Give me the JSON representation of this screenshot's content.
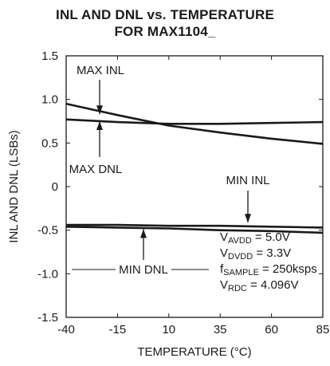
{
  "chart_data": {
    "type": "line",
    "title": "INL AND DNL vs. TEMPERATURE",
    "subtitle": "FOR MAX1104_",
    "xlabel": "TEMPERATURE (°C)",
    "ylabel": "INL AND DNL (LSBs)",
    "xlim": [
      -40,
      85
    ],
    "ylim": [
      -1.5,
      1.5
    ],
    "x_ticks": [
      "-40",
      "-15",
      "10",
      "35",
      "60",
      "85"
    ],
    "y_ticks": [
      "1.5",
      "1.0",
      "0.5",
      "0",
      "-0.5",
      "-1.0",
      "-1.5"
    ],
    "grid": false,
    "series": [
      {
        "name": "MAX INL",
        "x": [
          -40,
          -15,
          10,
          35,
          60,
          85
        ],
        "y": [
          0.95,
          0.82,
          0.7,
          0.62,
          0.55,
          0.49
        ]
      },
      {
        "name": "MAX DNL",
        "x": [
          -40,
          -15,
          10,
          35,
          60,
          85
        ],
        "y": [
          0.77,
          0.74,
          0.72,
          0.72,
          0.73,
          0.74
        ]
      },
      {
        "name": "MIN INL",
        "x": [
          -40,
          -15,
          10,
          35,
          60,
          85
        ],
        "y": [
          -0.44,
          -0.44,
          -0.45,
          -0.45,
          -0.46,
          -0.47
        ]
      },
      {
        "name": "MIN DNL",
        "x": [
          -40,
          -15,
          10,
          35,
          60,
          85
        ],
        "y": [
          -0.46,
          -0.47,
          -0.48,
          -0.5,
          -0.51,
          -0.53
        ]
      }
    ],
    "annotations": {
      "max_inl": "MAX INL",
      "max_dnl": "MAX DNL",
      "min_inl": "MIN INL",
      "min_dnl": "MIN DNL"
    },
    "conditions": [
      {
        "main": "V",
        "sub": "AVDD",
        "rest": " = 5.0V"
      },
      {
        "main": "V",
        "sub": "DVDD",
        "rest": " = 3.3V"
      },
      {
        "main": "f",
        "sub": "SAMPLE",
        "rest": " = 250ksps"
      },
      {
        "main": "V",
        "sub": "RDC",
        "rest": " = 4.096V"
      }
    ]
  }
}
